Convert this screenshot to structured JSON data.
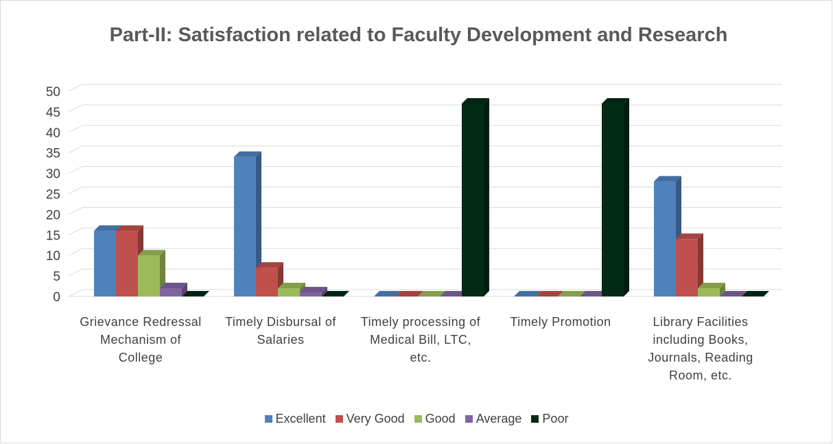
{
  "chart_data": {
    "type": "bar3d",
    "title": "Part-II: Satisfaction related to Faculty Development and Research",
    "categories": [
      "Grievance Redressal Mechanism of College",
      "Timely Disbursal of Salaries",
      "Timely processing of Medical Bill, LTC, etc.",
      "Timely Promotion",
      "Library Facilities including Books, Journals, Reading Room, etc."
    ],
    "series": [
      {
        "name": "Excellent",
        "color": "#4f81bd",
        "values": [
          16,
          34,
          0,
          0,
          28
        ]
      },
      {
        "name": "Very Good",
        "color": "#c0504d",
        "values": [
          16,
          7,
          0,
          0,
          14
        ]
      },
      {
        "name": "Good",
        "color": "#9bbb59",
        "values": [
          10,
          2,
          0,
          0,
          2
        ]
      },
      {
        "name": "Average",
        "color": "#8064a2",
        "values": [
          2,
          1,
          0,
          0,
          0
        ]
      },
      {
        "name": "Poor",
        "color": "#022a16",
        "values": [
          0,
          0,
          47,
          47,
          0
        ]
      }
    ],
    "ylim": [
      0,
      50
    ],
    "yticks": [
      0,
      5,
      10,
      15,
      20,
      25,
      30,
      35,
      40,
      45,
      50
    ],
    "grid": true,
    "legend": "bottom"
  }
}
